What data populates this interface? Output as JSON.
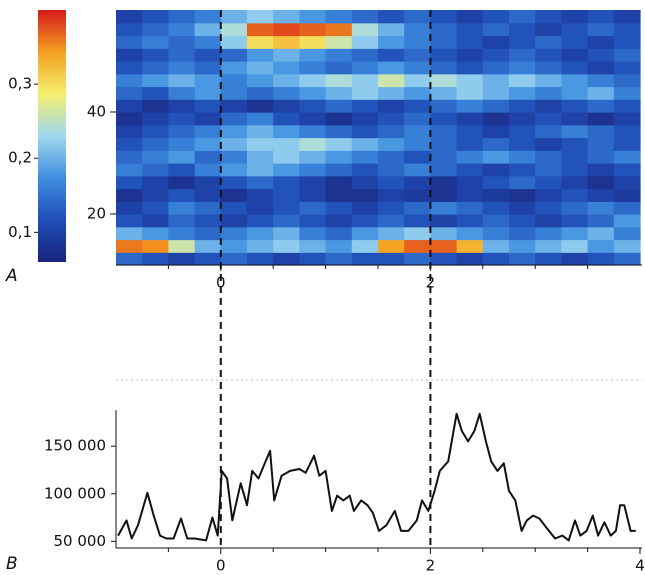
{
  "chart_data": [
    {
      "type": "heatmap",
      "panel_label": "A",
      "x": [
        -0.875,
        -0.625,
        -0.375,
        -0.125,
        0.125,
        0.375,
        0.625,
        0.875,
        1.125,
        1.375,
        1.625,
        1.875,
        2.125,
        2.375,
        2.625,
        2.875,
        3.125,
        3.375,
        3.625,
        3.875
      ],
      "y": [
        11.25,
        13.75,
        16.25,
        18.75,
        21.25,
        23.75,
        26.25,
        28.75,
        31.25,
        33.75,
        36.25,
        38.75,
        41.25,
        43.75,
        46.25,
        48.75,
        51.25,
        53.75,
        56.25,
        58.75
      ],
      "values": [
        [
          0.14,
          0.12,
          0.1,
          0.12,
          0.14,
          0.12,
          0.1,
          0.12,
          0.14,
          0.12,
          0.12,
          0.14,
          0.12,
          0.1,
          0.12,
          0.14,
          0.12,
          0.1,
          0.12,
          0.14
        ],
        [
          0.36,
          0.35,
          0.26,
          0.2,
          0.18,
          0.2,
          0.22,
          0.2,
          0.18,
          0.22,
          0.34,
          0.37,
          0.37,
          0.33,
          0.2,
          0.18,
          0.2,
          0.22,
          0.18,
          0.2
        ],
        [
          0.2,
          0.18,
          0.16,
          0.14,
          0.16,
          0.18,
          0.2,
          0.16,
          0.14,
          0.18,
          0.2,
          0.22,
          0.2,
          0.18,
          0.16,
          0.14,
          0.16,
          0.18,
          0.2,
          0.16
        ],
        [
          0.12,
          0.1,
          0.14,
          0.12,
          0.1,
          0.12,
          0.14,
          0.12,
          0.1,
          0.12,
          0.14,
          0.12,
          0.1,
          0.12,
          0.14,
          0.12,
          0.1,
          0.12,
          0.14,
          0.18
        ],
        [
          0.1,
          0.12,
          0.16,
          0.14,
          0.12,
          0.1,
          0.12,
          0.14,
          0.12,
          0.1,
          0.12,
          0.14,
          0.16,
          0.14,
          0.12,
          0.1,
          0.12,
          0.14,
          0.16,
          0.14
        ],
        [
          0.08,
          0.1,
          0.12,
          0.1,
          0.08,
          0.1,
          0.12,
          0.1,
          0.08,
          0.08,
          0.1,
          0.09,
          0.08,
          0.1,
          0.09,
          0.08,
          0.1,
          0.12,
          0.1,
          0.09
        ],
        [
          0.12,
          0.1,
          0.08,
          0.1,
          0.12,
          0.14,
          0.12,
          0.1,
          0.08,
          0.1,
          0.12,
          0.1,
          0.08,
          0.1,
          0.12,
          0.14,
          0.12,
          0.1,
          0.08,
          0.1
        ],
        [
          0.16,
          0.14,
          0.12,
          0.16,
          0.18,
          0.2,
          0.18,
          0.16,
          0.14,
          0.12,
          0.14,
          0.16,
          0.14,
          0.12,
          0.1,
          0.12,
          0.14,
          0.12,
          0.1,
          0.12
        ],
        [
          0.14,
          0.16,
          0.18,
          0.14,
          0.16,
          0.2,
          0.22,
          0.2,
          0.18,
          0.16,
          0.14,
          0.12,
          0.14,
          0.16,
          0.18,
          0.16,
          0.14,
          0.12,
          0.14,
          0.16
        ],
        [
          0.12,
          0.14,
          0.16,
          0.18,
          0.2,
          0.22,
          0.22,
          0.24,
          0.22,
          0.2,
          0.18,
          0.16,
          0.14,
          0.12,
          0.14,
          0.12,
          0.1,
          0.12,
          0.14,
          0.12
        ],
        [
          0.1,
          0.12,
          0.14,
          0.16,
          0.18,
          0.2,
          0.18,
          0.16,
          0.14,
          0.12,
          0.14,
          0.16,
          0.14,
          0.12,
          0.1,
          0.12,
          0.14,
          0.16,
          0.14,
          0.12
        ],
        [
          0.08,
          0.1,
          0.12,
          0.1,
          0.14,
          0.16,
          0.12,
          0.1,
          0.08,
          0.1,
          0.12,
          0.14,
          0.12,
          0.1,
          0.08,
          0.1,
          0.12,
          0.1,
          0.08,
          0.1
        ],
        [
          0.1,
          0.08,
          0.1,
          0.12,
          0.1,
          0.08,
          0.1,
          0.12,
          0.14,
          0.12,
          0.1,
          0.12,
          0.14,
          0.16,
          0.14,
          0.12,
          0.1,
          0.12,
          0.14,
          0.12
        ],
        [
          0.14,
          0.12,
          0.16,
          0.18,
          0.16,
          0.14,
          0.16,
          0.18,
          0.2,
          0.22,
          0.2,
          0.18,
          0.2,
          0.22,
          0.2,
          0.18,
          0.16,
          0.18,
          0.2,
          0.16
        ],
        [
          0.16,
          0.18,
          0.2,
          0.18,
          0.16,
          0.18,
          0.2,
          0.22,
          0.24,
          0.22,
          0.26,
          0.22,
          0.24,
          0.22,
          0.2,
          0.22,
          0.2,
          0.18,
          0.16,
          0.14
        ],
        [
          0.12,
          0.14,
          0.16,
          0.14,
          0.18,
          0.2,
          0.18,
          0.16,
          0.14,
          0.16,
          0.18,
          0.16,
          0.14,
          0.12,
          0.14,
          0.16,
          0.14,
          0.12,
          0.1,
          0.12
        ],
        [
          0.1,
          0.12,
          0.14,
          0.12,
          0.14,
          0.18,
          0.2,
          0.18,
          0.16,
          0.14,
          0.12,
          0.14,
          0.12,
          0.1,
          0.12,
          0.14,
          0.12,
          0.1,
          0.12,
          0.14
        ],
        [
          0.14,
          0.16,
          0.14,
          0.16,
          0.22,
          0.3,
          0.32,
          0.3,
          0.26,
          0.22,
          0.18,
          0.16,
          0.14,
          0.12,
          0.1,
          0.12,
          0.14,
          0.12,
          0.1,
          0.12
        ],
        [
          0.12,
          0.14,
          0.16,
          0.2,
          0.24,
          0.37,
          0.38,
          0.37,
          0.36,
          0.24,
          0.2,
          0.16,
          0.14,
          0.12,
          0.14,
          0.12,
          0.1,
          0.12,
          0.14,
          0.12
        ],
        [
          0.1,
          0.12,
          0.14,
          0.16,
          0.2,
          0.22,
          0.2,
          0.18,
          0.16,
          0.14,
          0.12,
          0.14,
          0.12,
          0.1,
          0.12,
          0.14,
          0.12,
          0.1,
          0.12,
          0.1
        ]
      ],
      "xlim": [
        -1,
        4
      ],
      "xticks": [
        0,
        2
      ],
      "xminorticks": [
        -0.5,
        0.5,
        1,
        1.5,
        2.5,
        3,
        3.5
      ],
      "ylim": [
        10,
        60
      ],
      "yticks": [
        20,
        40
      ],
      "colormap": [
        "#1a237e",
        "#1f4fb8",
        "#3f8ee0",
        "#9fd8ee",
        "#f5f070",
        "#f4a020",
        "#d7191c"
      ],
      "clim": [
        0.06,
        0.4
      ],
      "cticks": [
        {
          "value": 0.1,
          "label": "0,1"
        },
        {
          "value": 0.2,
          "label": "0,2"
        },
        {
          "value": 0.3,
          "label": "0,3"
        }
      ]
    },
    {
      "type": "line",
      "panel_label": "B",
      "x": [
        -0.98,
        -0.9,
        -0.85,
        -0.79,
        -0.7,
        -0.64,
        -0.58,
        -0.52,
        -0.45,
        -0.38,
        -0.32,
        -0.25,
        -0.14,
        -0.08,
        -0.03,
        0.01,
        0.06,
        0.11,
        0.19,
        0.25,
        0.3,
        0.36,
        0.42,
        0.47,
        0.51,
        0.58,
        0.66,
        0.75,
        0.81,
        0.89,
        0.94,
        1.0,
        1.06,
        1.11,
        1.17,
        1.23,
        1.27,
        1.34,
        1.4,
        1.45,
        1.51,
        1.58,
        1.66,
        1.72,
        1.79,
        1.87,
        1.92,
        1.98,
        2.04,
        2.09,
        2.17,
        2.25,
        2.3,
        2.36,
        2.42,
        2.47,
        2.53,
        2.58,
        2.64,
        2.7,
        2.75,
        2.81,
        2.87,
        2.92,
        2.98,
        3.04,
        3.11,
        3.19,
        3.26,
        3.32,
        3.38,
        3.43,
        3.49,
        3.55,
        3.6,
        3.66,
        3.72,
        3.77,
        3.81,
        3.85,
        3.91,
        3.96
      ],
      "series": [
        {
          "color": "#111111",
          "values": [
            56000,
            72000,
            53000,
            67000,
            101000,
            77000,
            56000,
            53000,
            53000,
            74000,
            53000,
            53000,
            51000,
            75000,
            56000,
            124000,
            116000,
            72000,
            111000,
            88000,
            124000,
            116000,
            132000,
            145000,
            93000,
            119000,
            124000,
            126000,
            122000,
            140000,
            119000,
            124000,
            82000,
            98000,
            93000,
            98000,
            82000,
            93000,
            88000,
            80000,
            61000,
            67000,
            82000,
            61000,
            61000,
            72000,
            93000,
            82000,
            103000,
            124000,
            134000,
            184000,
            166000,
            155000,
            166000,
            184000,
            155000,
            134000,
            124000,
            132000,
            103000,
            93000,
            61000,
            72000,
            77000,
            74000,
            64000,
            53000,
            56000,
            51000,
            72000,
            56000,
            61000,
            77000,
            56000,
            70000,
            56000,
            61000,
            88000,
            88000,
            61000,
            61000
          ]
        }
      ],
      "xlim": [
        -1,
        4
      ],
      "xticks": [
        0,
        2,
        4
      ],
      "xminorticks": [
        -0.5,
        0.5,
        1,
        1.5,
        2.5,
        3,
        3.5
      ],
      "ylim": [
        43000,
        188000
      ],
      "yticks": [
        {
          "value": 50000,
          "label": "50 000"
        },
        {
          "value": 100000,
          "label": "100 000"
        },
        {
          "value": 150000,
          "label": "150 000"
        }
      ],
      "vlines": [
        0,
        2
      ]
    }
  ]
}
